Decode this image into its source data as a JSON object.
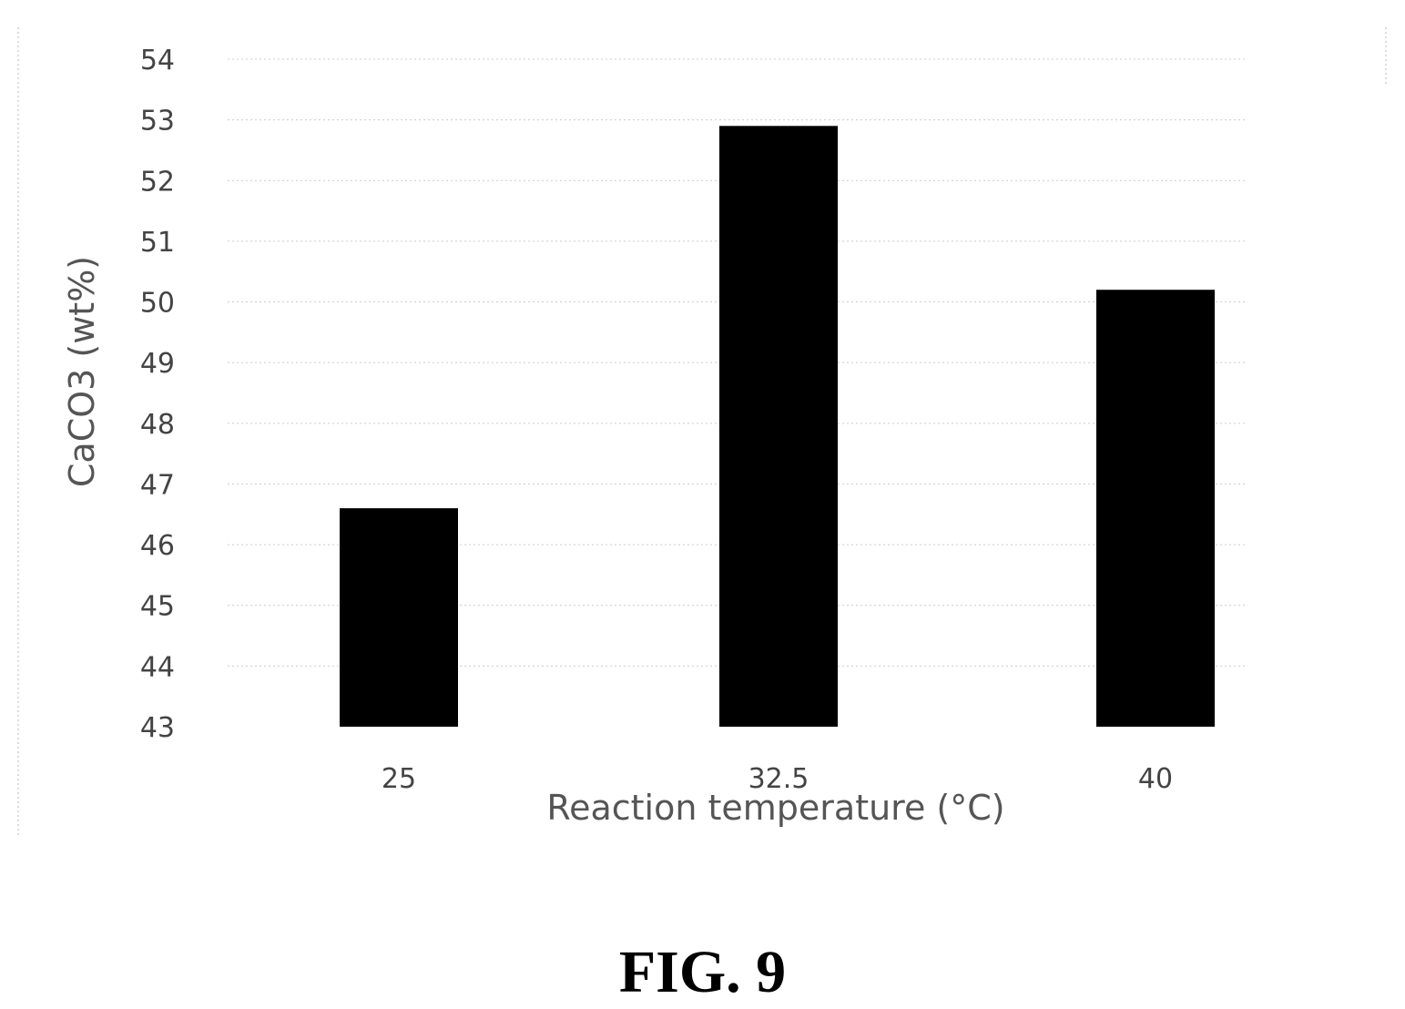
{
  "chart_data": {
    "type": "bar",
    "categories": [
      "25",
      "32.5",
      "40"
    ],
    "values": [
      46.6,
      52.9,
      50.2
    ],
    "xlabel": "Reaction temperature (°C)",
    "ylabel": "CaCO3 (wt%)",
    "ylim": [
      43,
      54
    ],
    "yticks": [
      "43",
      "44",
      "45",
      "46",
      "47",
      "48",
      "49",
      "50",
      "51",
      "52",
      "53",
      "54"
    ],
    "bar_color": "#000000",
    "grid": true
  },
  "figure": {
    "caption": "FIG. 9"
  }
}
